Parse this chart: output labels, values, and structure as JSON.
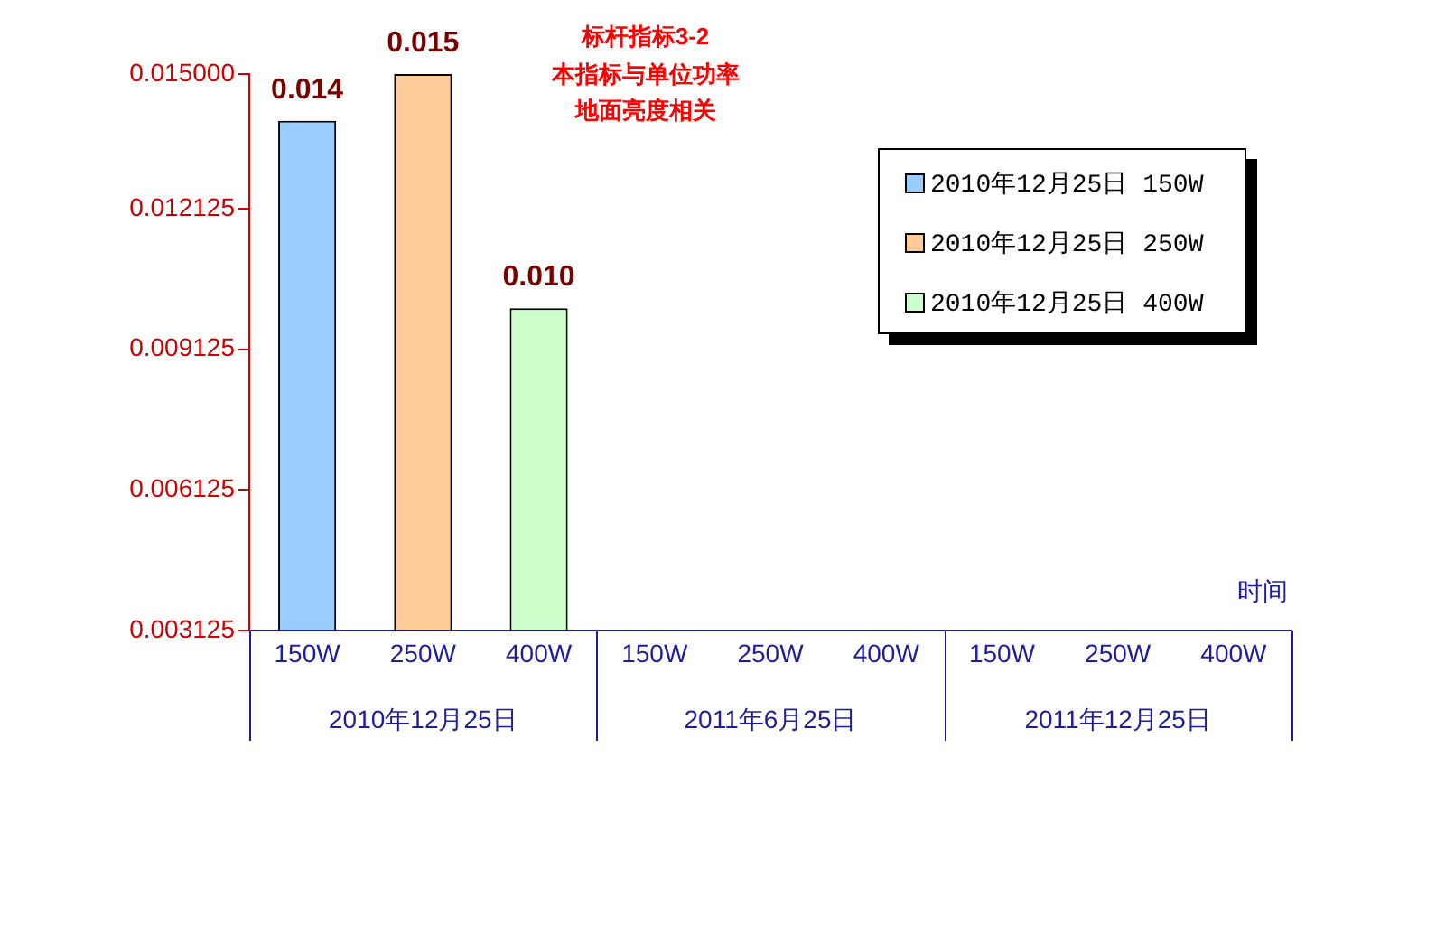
{
  "chart_data": {
    "type": "bar",
    "title": "标杆指标3-2",
    "subtitle": "本指标与单位功率地面亮度相关",
    "xlabel": "时间",
    "categories": [
      "150W",
      "250W",
      "400W",
      "150W",
      "250W",
      "400W",
      "150W",
      "250W",
      "400W"
    ],
    "series": [
      {
        "name": "2010年12月25日 150W",
        "color": "#99ccff",
        "values": [
          0.014,
          null,
          null,
          null,
          null,
          null,
          null,
          null,
          null
        ],
        "value_labels": [
          "0.014",
          null,
          null,
          null,
          null,
          null,
          null,
          null,
          null
        ]
      },
      {
        "name": "2010年12月25日 250W",
        "color": "#ffcc99",
        "values": [
          null,
          0.015,
          null,
          null,
          null,
          null,
          null,
          null,
          null
        ],
        "value_labels": [
          null,
          "0.015",
          null,
          null,
          null,
          null,
          null,
          null,
          null
        ]
      },
      {
        "name": "2010年12月25日 400W",
        "color": "#ccffcc",
        "values": [
          null,
          null,
          0.01,
          null,
          null,
          null,
          null,
          null,
          null
        ],
        "value_labels": [
          null,
          null,
          "0.010",
          null,
          null,
          null,
          null,
          null,
          null
        ]
      }
    ],
    "ylim": [
      0.003125,
      0.015
    ],
    "yticks": [
      0.003125,
      0.006125,
      0.009125,
      0.012125,
      {
        "value": 0.015,
        "label": "0.015000"
      }
    ],
    "legend": "top right",
    "grid": false,
    "annotations": [
      "2010年12月25日",
      "2011年6月25日",
      "2011年12月25日"
    ]
  }
}
